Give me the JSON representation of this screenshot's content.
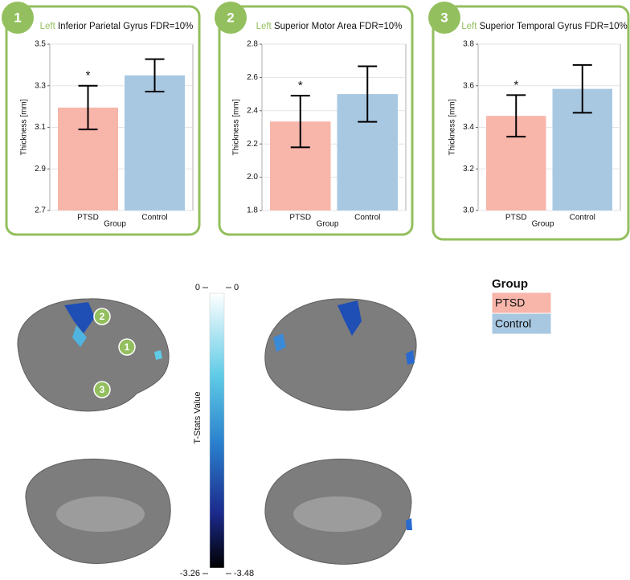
{
  "chart_data": [
    {
      "type": "bar",
      "panel": "1",
      "hemisphere": "Left",
      "title": "Inferior Parietal Gyrus FDR=10%",
      "y_label": "Thickness [mm]",
      "x_label": "Group",
      "annotation": "*",
      "categories": [
        "PTSD",
        "Control"
      ],
      "values": [
        3.195,
        3.35
      ],
      "errors": [
        0.105,
        0.078
      ],
      "colors": [
        "#f8b5aa",
        "#a8c8e2"
      ],
      "ylim": [
        2.7,
        3.5
      ],
      "yticks": [
        2.7,
        2.9,
        3.1,
        3.3,
        3.5
      ],
      "grid": true
    },
    {
      "type": "bar",
      "panel": "2",
      "hemisphere": "Left",
      "title": "Superior Motor Area FDR=10%",
      "y_label": "Thickness [mm]",
      "x_label": "Group",
      "annotation": "*",
      "categories": [
        "PTSD",
        "Control"
      ],
      "values": [
        2.335,
        2.5
      ],
      "errors": [
        0.155,
        0.167
      ],
      "colors": [
        "#f8b5aa",
        "#a8c8e2"
      ],
      "ylim": [
        1.8,
        2.8
      ],
      "yticks": [
        1.8,
        {
          "value": 2,
          "label": "2.0"
        },
        2.2,
        2.4,
        2.6,
        2.8
      ],
      "grid": true
    },
    {
      "type": "bar",
      "panel": "3",
      "hemisphere": "Left",
      "title": "Superior Temporal Gyrus FDR=10%",
      "y_label": "Thickness [mm]",
      "x_label": "Group",
      "annotation": "*",
      "categories": [
        "PTSD",
        "Control"
      ],
      "values": [
        3.455,
        3.585
      ],
      "errors": [
        0.1,
        0.115
      ],
      "colors": [
        "#f8b5aa",
        "#a8c8e2"
      ],
      "ylim": [
        3.0,
        3.8
      ],
      "yticks": [
        {
          "value": 3,
          "label": "3.0"
        },
        3.2,
        3.4,
        3.6,
        3.8
      ],
      "grid": true
    }
  ],
  "colorbar": {
    "label": "T-Stats Value",
    "left_top": "0",
    "right_top": "0",
    "left_bottom": "-3.26",
    "right_bottom": "-3.48"
  },
  "legend": {
    "title": "Group"
  }
}
